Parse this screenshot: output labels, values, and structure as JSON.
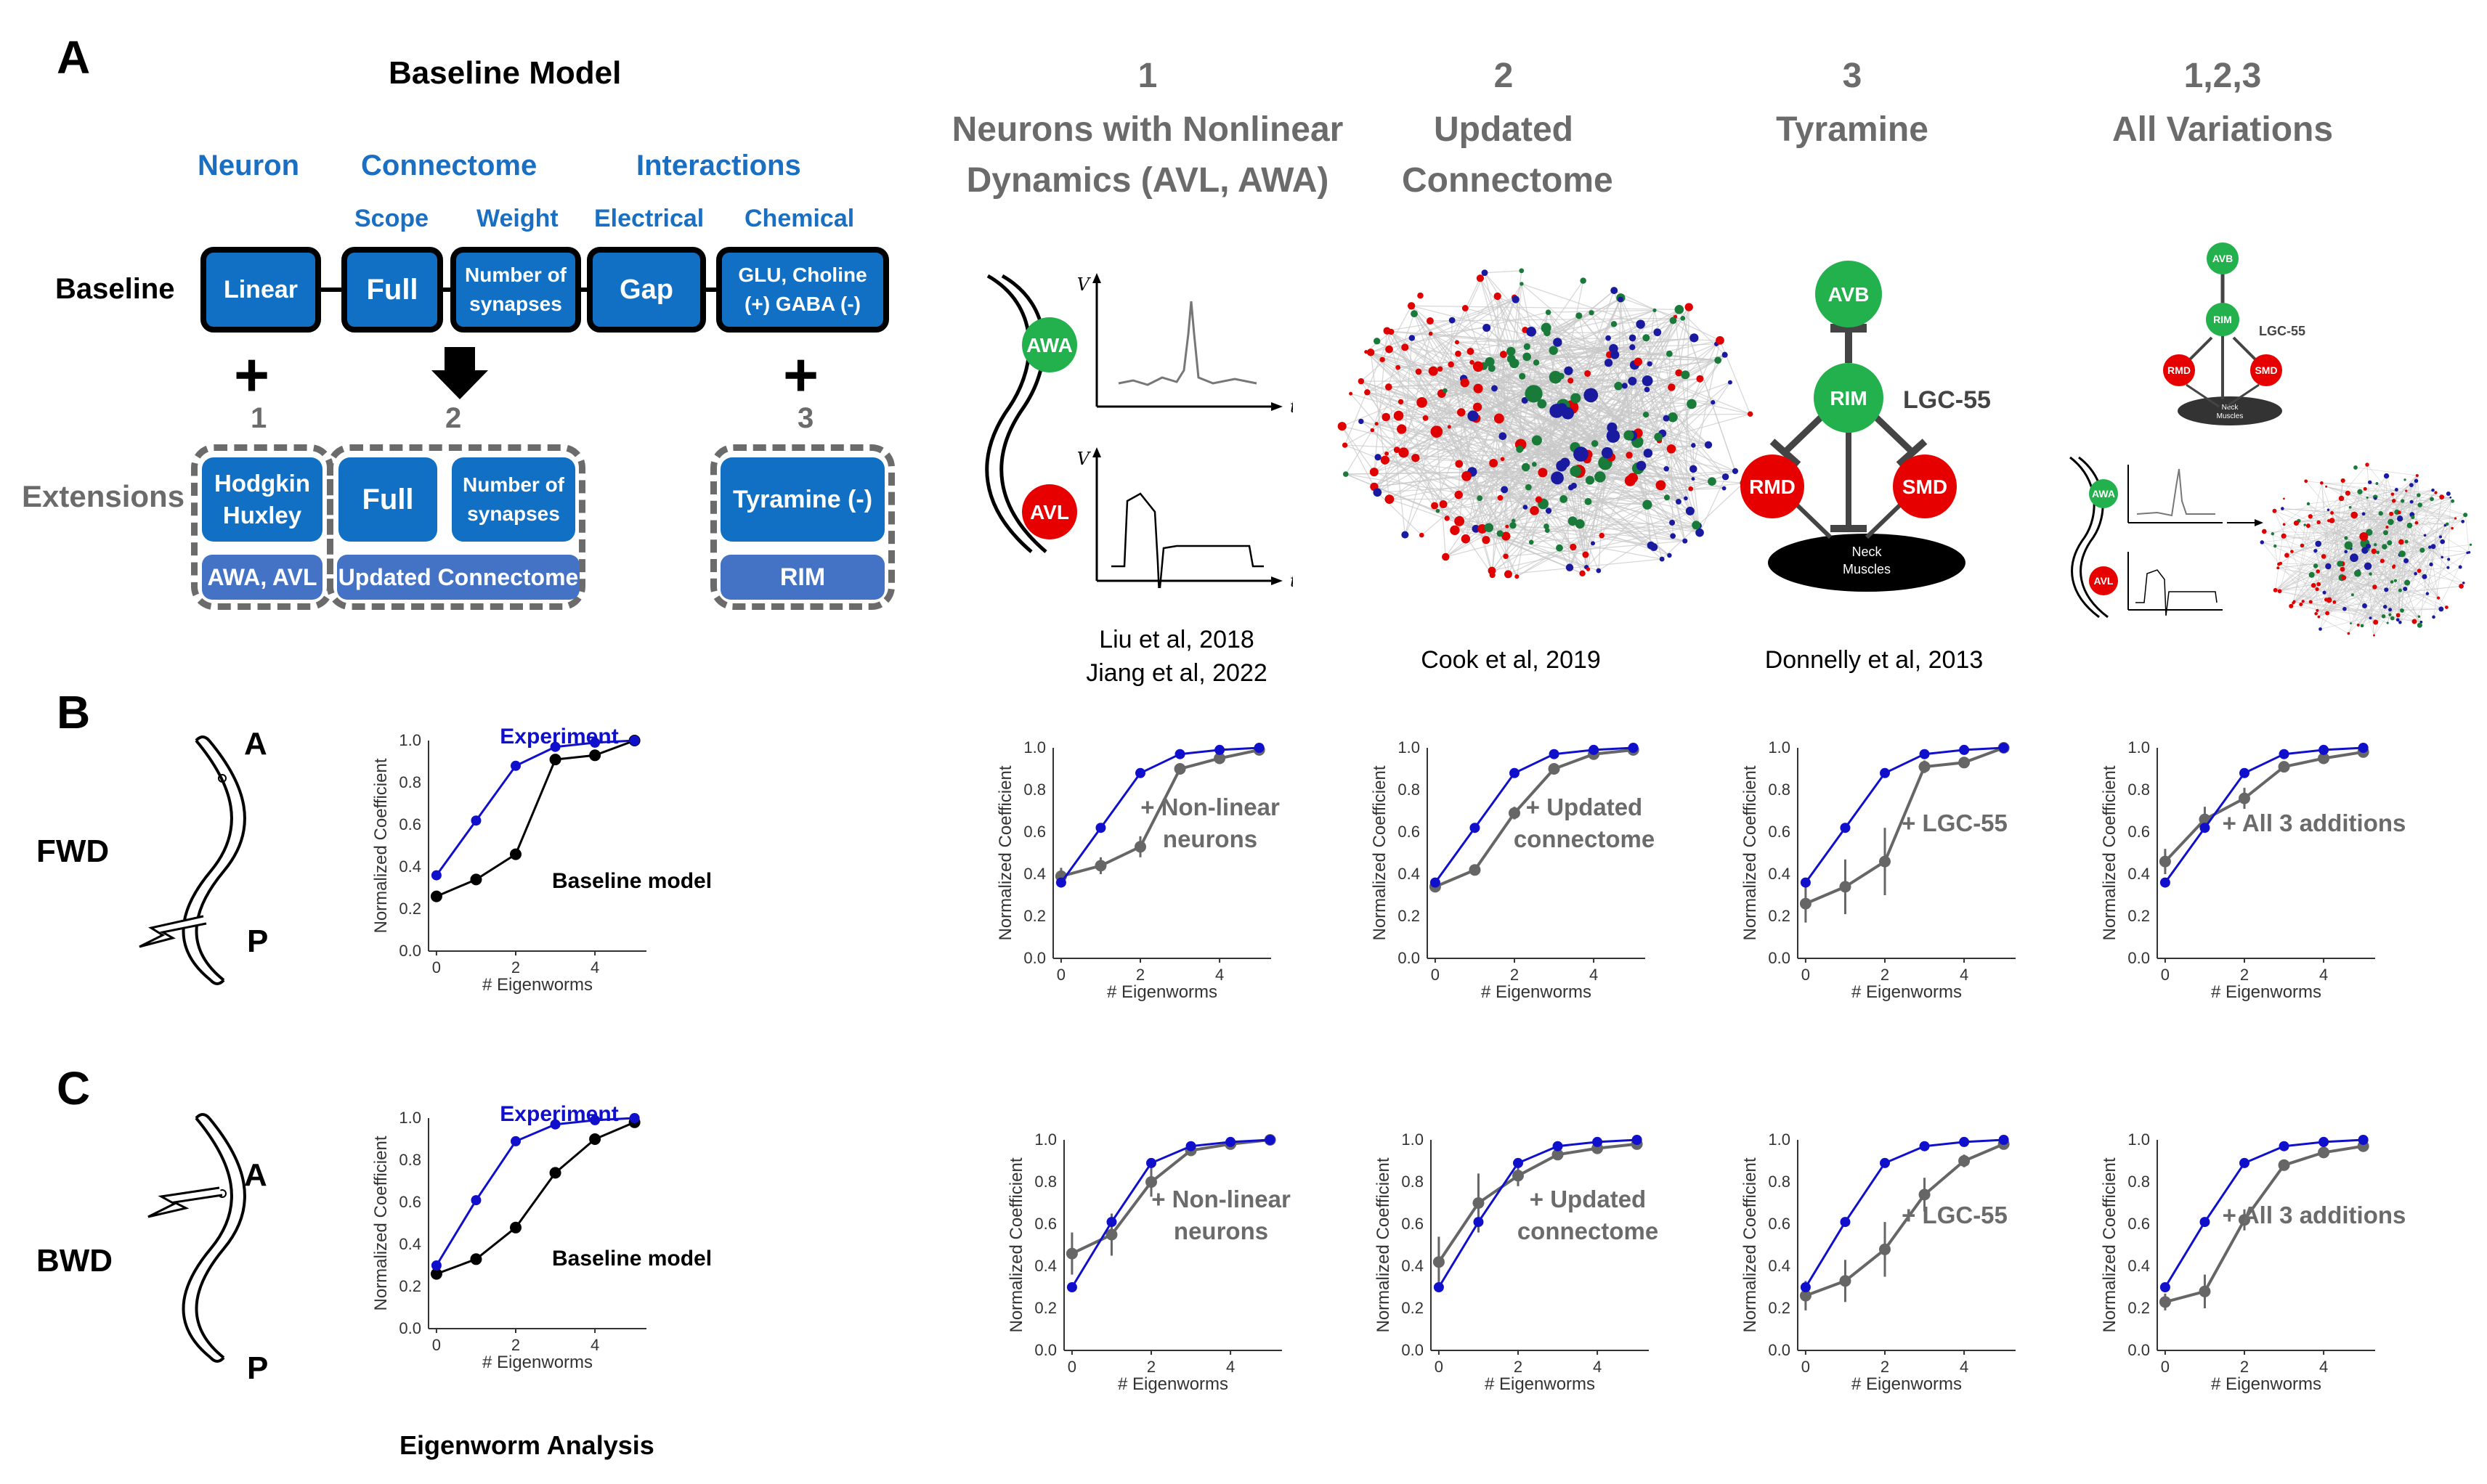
{
  "panels": {
    "a": "A",
    "b": "B",
    "c": "C"
  },
  "baseline": {
    "title": "Baseline Model",
    "groups": {
      "neuron": "Neuron",
      "connectome": "Connectome",
      "interactions": "Interactions"
    },
    "sub": {
      "scope": "Scope",
      "weight": "Weight",
      "electrical": "Electrical",
      "chemical": "Chemical"
    },
    "row_label": "Baseline",
    "boxes": {
      "linear": "Linear",
      "full": "Full",
      "synapses": "Number of synapses",
      "gap": "Gap",
      "chemical": "GLU, Choline (+) GABA (-)"
    },
    "plus": "+",
    "ext_nums": {
      "one": "1",
      "two": "2",
      "three": "3"
    },
    "ext_label": "Extensions",
    "ext_boxes": {
      "hh": "Hodgkin Huxley",
      "full": "Full",
      "synapses": "Number of synapses",
      "tyramine": "Tyramine (-)"
    },
    "ext_sub": {
      "awa_avl": "AWA, AVL",
      "updated": "Updated Connectome",
      "rim": "RIM"
    }
  },
  "columns": [
    {
      "num": "1",
      "title": "Neurons with Nonlinear Dynamics (AVL, AWA)",
      "cite": "Liu et al, 2018\nJiang et al, 2022"
    },
    {
      "num": "2",
      "title": "Updated Connectome",
      "cite": "Cook et al, 2019"
    },
    {
      "num": "3",
      "title": "Tyramine",
      "cite": "Donnelly et al, 2013"
    },
    {
      "num": "1,2,3",
      "title": "All Variations",
      "cite": ""
    }
  ],
  "illus": {
    "awa": "AWA",
    "avl": "AVL",
    "v": "V",
    "t": "t",
    "avb": "AVB",
    "rim": "RIM",
    "rmd": "RMD",
    "smd": "SMD",
    "neck": "Neck Muscles",
    "lgc": "LGC-55"
  },
  "worm": {
    "a": "A",
    "p": "P",
    "fwd": "FWD",
    "bwd": "BWD"
  },
  "eigenworm_caption": "Eigenworm Analysis",
  "colors": {
    "experiment": "#1010cc",
    "baseline": "#000000",
    "model": "#666666",
    "box": "#1170c4",
    "green": "#22b14c",
    "red": "#e60000"
  },
  "chart_data": [
    {
      "id": "b0",
      "type": "line",
      "x": [
        0,
        1,
        2,
        3,
        4,
        5
      ],
      "ylabel": "Normalized Coefficient",
      "xlabel": "# Eigenworms",
      "ylim": [
        0,
        1
      ],
      "annotation": "Baseline model",
      "experiment_label": "Experiment",
      "series": [
        {
          "name": "Experiment",
          "values": [
            0.36,
            0.62,
            0.88,
            0.97,
            0.99,
            1.0
          ]
        },
        {
          "name": "Baseline model",
          "values": [
            0.26,
            0.34,
            0.46,
            0.91,
            0.93,
            1.0
          ]
        }
      ]
    },
    {
      "id": "b1",
      "type": "line",
      "x": [
        0,
        1,
        2,
        3,
        4,
        5
      ],
      "ylabel": "Normalized Coefficient",
      "xlabel": "# Eigenworms",
      "ylim": [
        0,
        1
      ],
      "annotation": "+ Non-linear\nneurons",
      "series": [
        {
          "values": [
            0.36,
            0.62,
            0.88,
            0.97,
            0.99,
            1.0
          ]
        },
        {
          "values": [
            0.39,
            0.44,
            0.53,
            0.9,
            0.95,
            0.99
          ],
          "err": [
            0.04,
            0.04,
            0.05,
            0.02,
            0.02,
            0.01
          ]
        }
      ]
    },
    {
      "id": "b2",
      "type": "line",
      "x": [
        0,
        1,
        2,
        3,
        4,
        5
      ],
      "ylabel": "Normalized Coefficient",
      "xlabel": "# Eigenworms",
      "ylim": [
        0,
        1
      ],
      "annotation": "+ Updated\nconnectome",
      "series": [
        {
          "values": [
            0.36,
            0.62,
            0.88,
            0.97,
            0.99,
            1.0
          ]
        },
        {
          "values": [
            0.34,
            0.42,
            0.69,
            0.9,
            0.97,
            0.99
          ],
          "err": [
            0.02,
            0.02,
            0.03,
            0.01,
            0.01,
            0.0
          ]
        }
      ]
    },
    {
      "id": "b3",
      "type": "line",
      "x": [
        0,
        1,
        2,
        3,
        4,
        5
      ],
      "ylabel": "Normalized Coefficient",
      "xlabel": "# Eigenworms",
      "ylim": [
        0,
        1
      ],
      "annotation": "+ LGC-55",
      "series": [
        {
          "values": [
            0.36,
            0.62,
            0.88,
            0.97,
            0.99,
            1.0
          ]
        },
        {
          "values": [
            0.26,
            0.34,
            0.46,
            0.91,
            0.93,
            1.0
          ],
          "err": [
            0.09,
            0.13,
            0.16,
            0.03,
            0.02,
            0.0
          ]
        }
      ]
    },
    {
      "id": "b4",
      "type": "line",
      "x": [
        0,
        1,
        2,
        3,
        4,
        5
      ],
      "ylabel": "Normalized Coefficient",
      "xlabel": "# Eigenworms",
      "ylim": [
        0,
        1
      ],
      "annotation": "+ All 3 additions",
      "series": [
        {
          "values": [
            0.36,
            0.62,
            0.88,
            0.97,
            0.99,
            1.0
          ]
        },
        {
          "values": [
            0.46,
            0.66,
            0.76,
            0.91,
            0.95,
            0.98
          ],
          "err": [
            0.06,
            0.06,
            0.05,
            0.02,
            0.02,
            0.01
          ]
        }
      ]
    },
    {
      "id": "c0",
      "type": "line",
      "x": [
        0,
        1,
        2,
        3,
        4,
        5
      ],
      "ylabel": "Normalized Coefficient",
      "xlabel": "# Eigenworms",
      "ylim": [
        0,
        1
      ],
      "annotation": "Baseline model",
      "experiment_label": "Experiment",
      "series": [
        {
          "name": "Experiment",
          "values": [
            0.3,
            0.61,
            0.89,
            0.97,
            0.99,
            1.0
          ]
        },
        {
          "name": "Baseline model",
          "values": [
            0.26,
            0.33,
            0.48,
            0.74,
            0.9,
            0.98
          ]
        }
      ]
    },
    {
      "id": "c1",
      "type": "line",
      "x": [
        0,
        1,
        2,
        3,
        4,
        5
      ],
      "ylabel": "Normalized Coefficient",
      "xlabel": "# Eigenworms",
      "ylim": [
        0,
        1
      ],
      "annotation": "+ Non-linear\nneurons",
      "series": [
        {
          "values": [
            0.3,
            0.61,
            0.89,
            0.97,
            0.99,
            1.0
          ]
        },
        {
          "values": [
            0.46,
            0.55,
            0.8,
            0.95,
            0.98,
            1.0
          ],
          "err": [
            0.1,
            0.1,
            0.07,
            0.02,
            0.01,
            0.0
          ]
        }
      ]
    },
    {
      "id": "c2",
      "type": "line",
      "x": [
        0,
        1,
        2,
        3,
        4,
        5
      ],
      "ylabel": "Normalized Coefficient",
      "xlabel": "# Eigenworms",
      "ylim": [
        0,
        1
      ],
      "annotation": "+ Updated\nconnectome",
      "series": [
        {
          "values": [
            0.3,
            0.61,
            0.89,
            0.97,
            0.99,
            1.0
          ]
        },
        {
          "values": [
            0.42,
            0.7,
            0.83,
            0.93,
            0.96,
            0.98
          ],
          "err": [
            0.12,
            0.14,
            0.05,
            0.02,
            0.01,
            0.01
          ]
        }
      ]
    },
    {
      "id": "c3",
      "type": "line",
      "x": [
        0,
        1,
        2,
        3,
        4,
        5
      ],
      "ylabel": "Normalized Coefficient",
      "xlabel": "# Eigenworms",
      "ylim": [
        0,
        1
      ],
      "annotation": "+ LGC-55",
      "series": [
        {
          "values": [
            0.3,
            0.61,
            0.89,
            0.97,
            0.99,
            1.0
          ]
        },
        {
          "values": [
            0.26,
            0.33,
            0.48,
            0.74,
            0.9,
            0.98
          ],
          "err": [
            0.07,
            0.1,
            0.13,
            0.08,
            0.03,
            0.01
          ]
        }
      ]
    },
    {
      "id": "c4",
      "type": "line",
      "x": [
        0,
        1,
        2,
        3,
        4,
        5
      ],
      "ylabel": "Normalized Coefficient",
      "xlabel": "# Eigenworms",
      "ylim": [
        0,
        1
      ],
      "annotation": "+ All 3 additions",
      "series": [
        {
          "values": [
            0.3,
            0.61,
            0.89,
            0.97,
            0.99,
            1.0
          ]
        },
        {
          "values": [
            0.23,
            0.28,
            0.62,
            0.88,
            0.94,
            0.97
          ],
          "err": [
            0.04,
            0.08,
            0.05,
            0.02,
            0.01,
            0.01
          ]
        }
      ]
    }
  ]
}
